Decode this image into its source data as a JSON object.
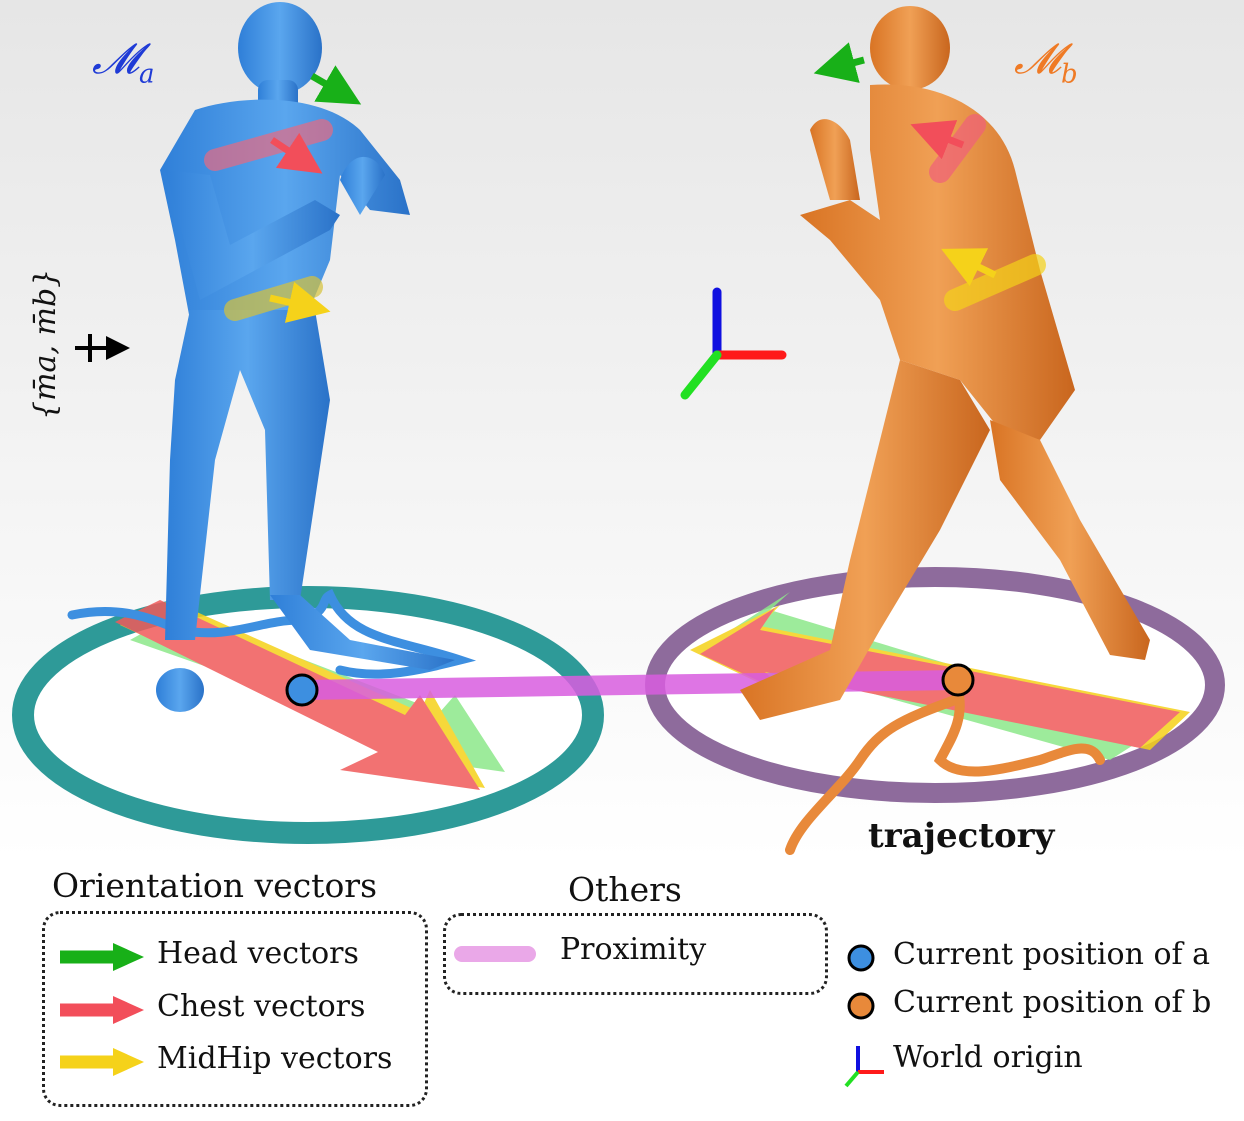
{
  "figure": {
    "model_a_label": "𝓜",
    "model_a_sub": "a",
    "model_b_label": "𝓜",
    "model_b_sub": "b",
    "input_set_label": "{m̄a, m̄b}",
    "trajectory_label": "trajectory",
    "colors": {
      "model_a": "#3d8fe0",
      "model_b": "#e8893a",
      "head": "#18b018",
      "chest": "#f24e5a",
      "midhip": "#f5d21a",
      "proximity": "#d95ee0",
      "circle_a": "#2e9a98",
      "circle_b": "#8e6b9c",
      "axis_x": "#ff1a1a",
      "axis_y": "#22e022",
      "axis_z": "#1010e0"
    }
  },
  "legend": {
    "orientation_title": "Orientation vectors",
    "orientation_items": [
      {
        "label": "Head vectors",
        "color": "#18b018"
      },
      {
        "label": "Chest vectors",
        "color": "#f24e5a"
      },
      {
        "label": "MidHip vectors",
        "color": "#f5d21a"
      }
    ],
    "others_title": "Others",
    "others_items": [
      {
        "label": "Proximity",
        "color": "#eaa8e8"
      }
    ],
    "markers": [
      {
        "label": "Current position of a",
        "color": "#3d8fe0"
      },
      {
        "label": "Current position of b",
        "color": "#e8893a"
      },
      {
        "label": "World origin"
      }
    ]
  }
}
